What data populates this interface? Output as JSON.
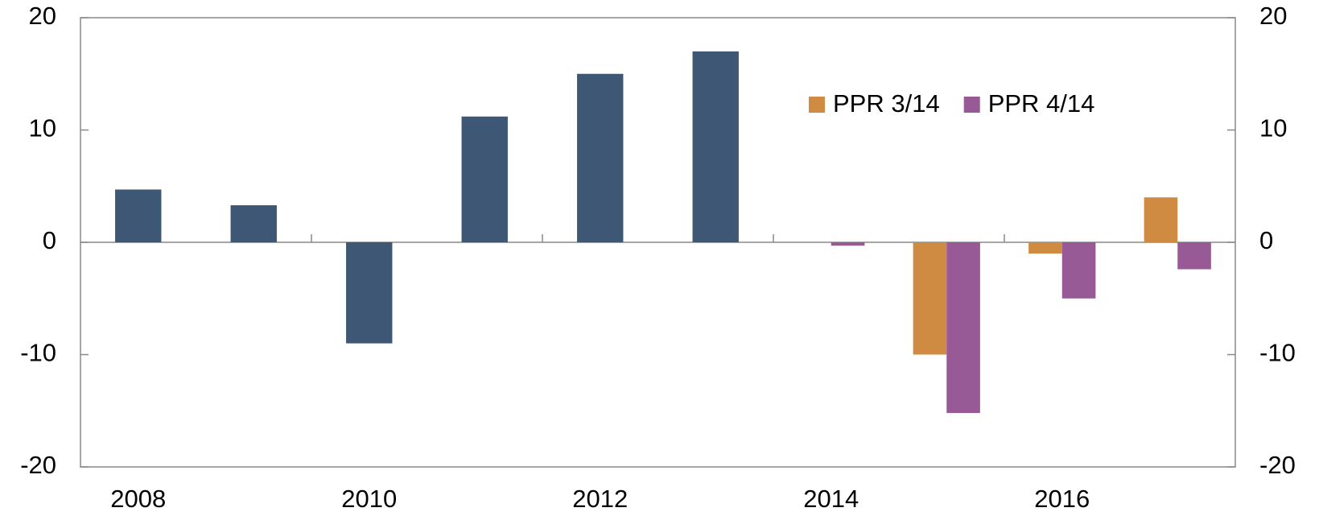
{
  "chart_data": {
    "type": "bar",
    "categories": [
      "2008",
      null,
      "2010",
      null,
      "2012",
      null,
      "2014",
      null,
      "2016",
      null
    ],
    "series": [
      {
        "color": "#3e5774",
        "values": [
          4.7,
          3.3,
          -9,
          11.2,
          15,
          17,
          null,
          null,
          null,
          null
        ]
      },
      {
        "name": "PPR 3/14",
        "color": "#cf8b41",
        "values": [
          null,
          null,
          null,
          null,
          null,
          null,
          null,
          -10,
          -1,
          4
        ]
      },
      {
        "name": "PPR 4/14",
        "color": "#975a96",
        "values": [
          null,
          null,
          null,
          null,
          null,
          null,
          -0.3,
          -15.2,
          -5,
          -2.4
        ]
      }
    ],
    "ylim": [
      -20,
      20
    ],
    "yticks": [
      -20,
      -10,
      0,
      10,
      20
    ],
    "y2lim": [
      -20,
      20
    ],
    "y2ticks": [
      -20,
      -10,
      0,
      10,
      20
    ],
    "legend": "top-right"
  }
}
